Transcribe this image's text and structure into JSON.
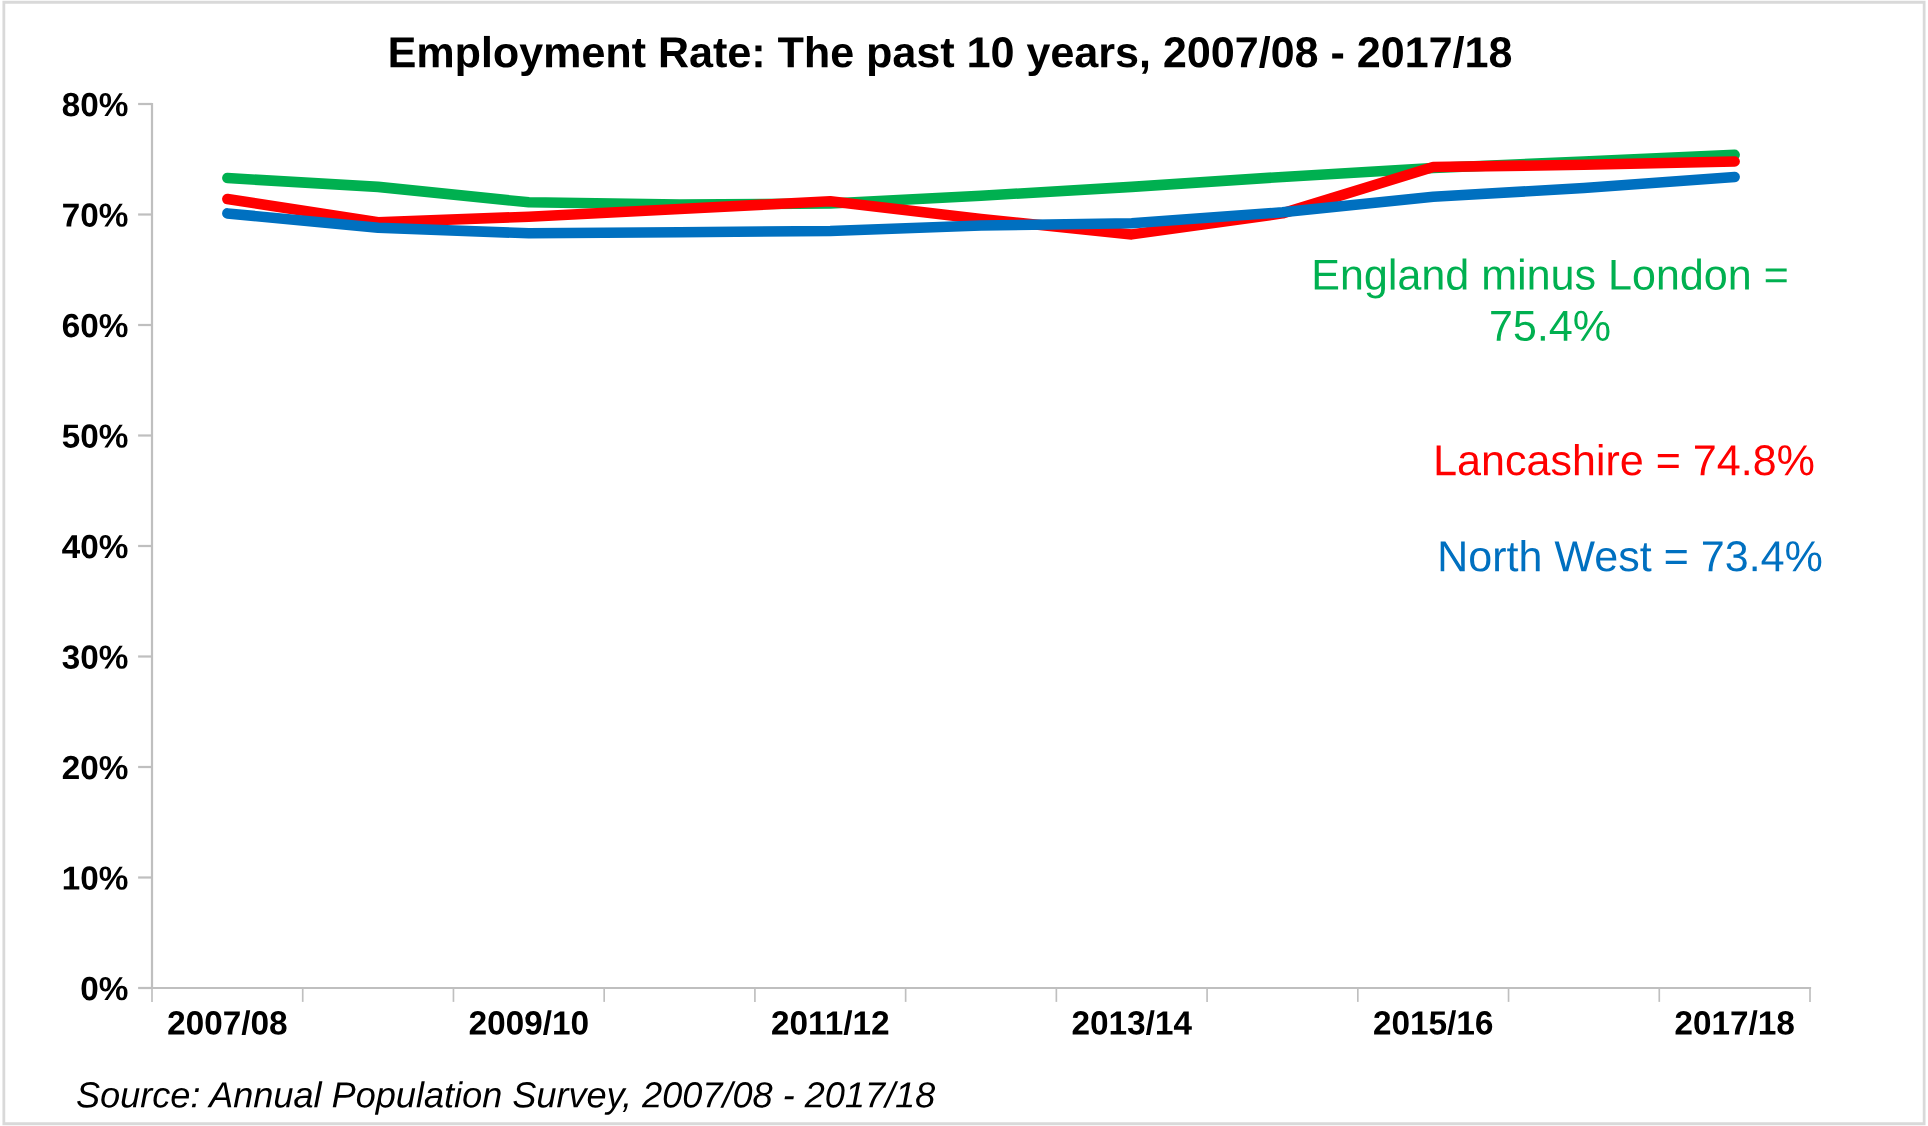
{
  "chart_data": {
    "type": "line",
    "title": "Employment Rate: The past 10 years, 2007/08 - 2017/18",
    "categories": [
      "2007/08",
      null,
      "2009/10",
      null,
      "2011/12",
      null,
      "2013/14",
      null,
      "2015/16",
      null,
      "2017/18"
    ],
    "series": [
      {
        "name": "England minus London = 75.4%",
        "color": "#00b050",
        "values": [
          73.3,
          72.5,
          71.1,
          70.9,
          71.0,
          71.7,
          72.5,
          73.4,
          74.2,
          74.8,
          75.4
        ]
      },
      {
        "name": "Lancashire = 74.8%",
        "color": "#ff0000",
        "values": [
          71.4,
          69.3,
          69.8,
          70.5,
          71.2,
          69.6,
          68.2,
          70.1,
          74.3,
          74.5,
          74.8
        ]
      },
      {
        "name": "North West = 73.4%",
        "color": "#0070c0",
        "values": [
          70.1,
          68.8,
          68.3,
          68.4,
          68.5,
          69.0,
          69.2,
          70.2,
          71.6,
          72.4,
          73.4
        ]
      }
    ],
    "ylim": [
      0,
      80
    ],
    "yticks": [
      {
        "value": 0,
        "label": "0%"
      },
      {
        "value": 10,
        "label": "10%"
      },
      {
        "value": 20,
        "label": "20%"
      },
      {
        "value": 30,
        "label": "30%"
      },
      {
        "value": 40,
        "label": "40%"
      },
      {
        "value": 50,
        "label": "50%"
      },
      {
        "value": 60,
        "label": "60%"
      },
      {
        "value": 70,
        "label": "70%"
      },
      {
        "value": 80,
        "label": "80%"
      }
    ],
    "grid": false,
    "legend": false,
    "marker": "none",
    "line_style": "solid",
    "annotations": [
      "Source: Annual Population Survey, 2007/08 - 2017/18"
    ]
  }
}
